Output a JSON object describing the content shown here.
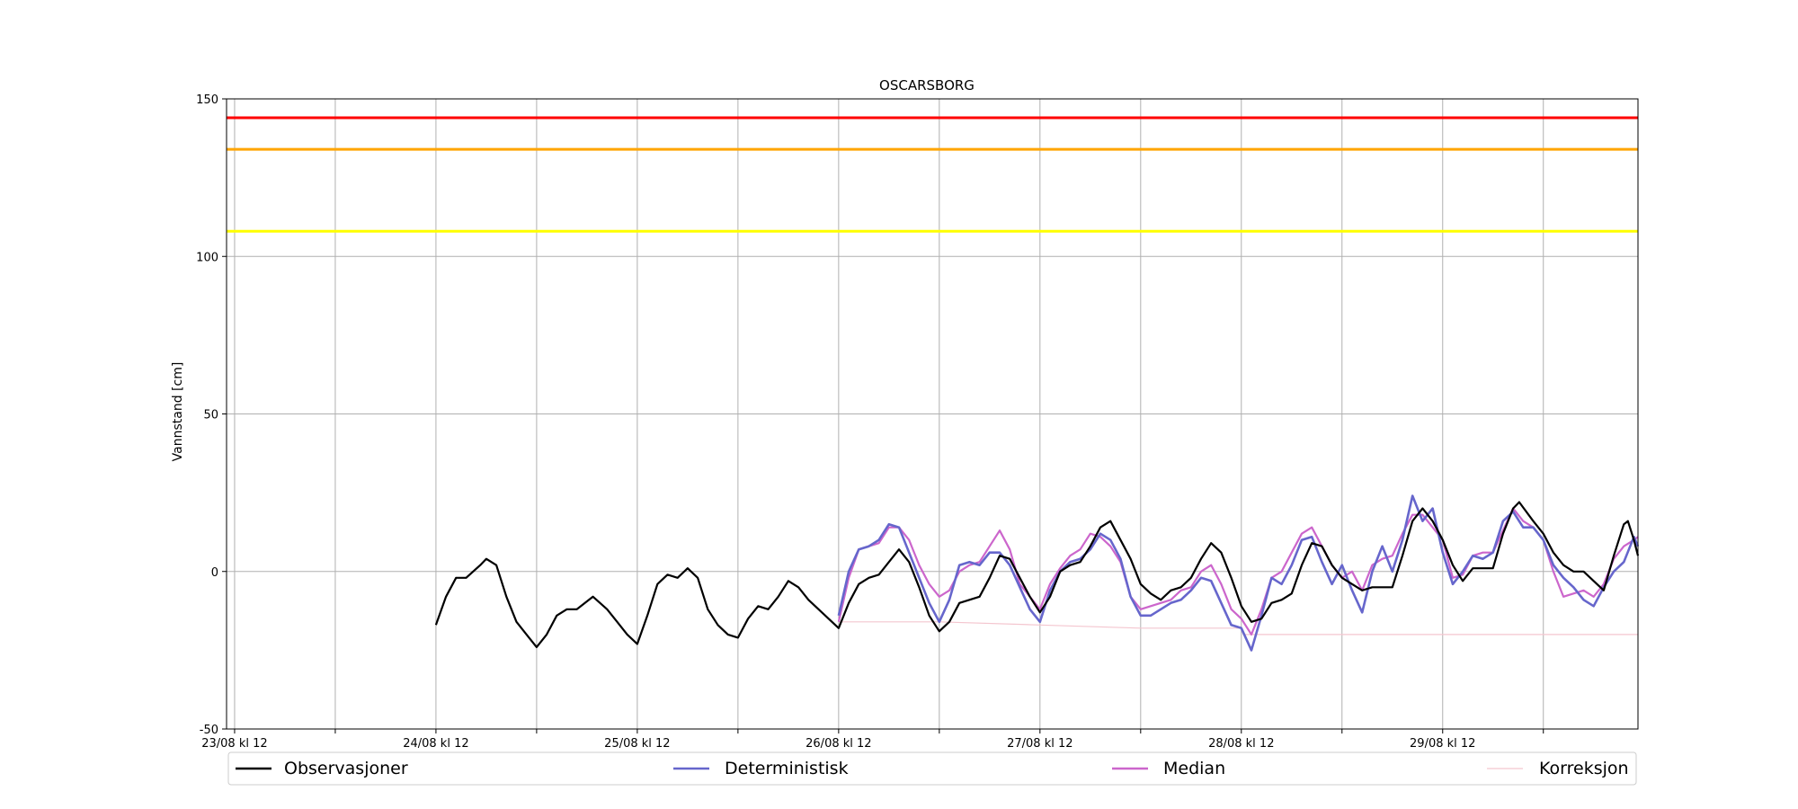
{
  "chart_data": {
    "type": "line",
    "title": "OSCARSBORG",
    "ylabel": "Vannstand [cm]",
    "xlabel": "",
    "ylim": [
      -50,
      150
    ],
    "xlim": [
      -0.04,
      6.97
    ],
    "x_unit": "days since 23/08 kl 12",
    "yticks": [
      -50,
      0,
      50,
      100,
      150
    ],
    "xticks": [
      {
        "x": 0,
        "label": "23/08 kl 12"
      },
      {
        "x": 0.5,
        "label": ""
      },
      {
        "x": 1,
        "label": "24/08 kl 12"
      },
      {
        "x": 1.5,
        "label": ""
      },
      {
        "x": 2,
        "label": "25/08 kl 12"
      },
      {
        "x": 2.5,
        "label": ""
      },
      {
        "x": 3,
        "label": "26/08 kl 12"
      },
      {
        "x": 3.5,
        "label": ""
      },
      {
        "x": 4,
        "label": "27/08 kl 12"
      },
      {
        "x": 4.5,
        "label": ""
      },
      {
        "x": 5,
        "label": "28/08 kl 12"
      },
      {
        "x": 5.5,
        "label": ""
      },
      {
        "x": 6,
        "label": "29/08 kl 12"
      },
      {
        "x": 6.5,
        "label": ""
      }
    ],
    "grid": true,
    "legend_placement": "bottom, below the axes, one row",
    "thresholds": [
      {
        "value": 144,
        "color": "#ff0000"
      },
      {
        "value": 134,
        "color": "#ffa500"
      },
      {
        "value": 108,
        "color": "#ffff00"
      }
    ],
    "series": [
      {
        "name": "Observasjoner",
        "color": "#000000",
        "points": [
          [
            1.0,
            -17
          ],
          [
            1.05,
            -8
          ],
          [
            1.1,
            -2
          ],
          [
            1.15,
            -2
          ],
          [
            1.22,
            2
          ],
          [
            1.25,
            4
          ],
          [
            1.3,
            2
          ],
          [
            1.35,
            -8
          ],
          [
            1.4,
            -16
          ],
          [
            1.45,
            -20
          ],
          [
            1.5,
            -24
          ],
          [
            1.55,
            -20
          ],
          [
            1.6,
            -14
          ],
          [
            1.65,
            -12
          ],
          [
            1.7,
            -12
          ],
          [
            1.78,
            -8
          ],
          [
            1.85,
            -12
          ],
          [
            1.9,
            -16
          ],
          [
            1.95,
            -20
          ],
          [
            2.0,
            -23
          ],
          [
            2.05,
            -14
          ],
          [
            2.1,
            -4
          ],
          [
            2.15,
            -1
          ],
          [
            2.2,
            -2
          ],
          [
            2.25,
            1
          ],
          [
            2.3,
            -2
          ],
          [
            2.35,
            -12
          ],
          [
            2.4,
            -17
          ],
          [
            2.45,
            -20
          ],
          [
            2.5,
            -21
          ],
          [
            2.55,
            -15
          ],
          [
            2.6,
            -11
          ],
          [
            2.65,
            -12
          ],
          [
            2.7,
            -8
          ],
          [
            2.75,
            -3
          ],
          [
            2.8,
            -5
          ],
          [
            2.85,
            -9
          ],
          [
            2.9,
            -12
          ],
          [
            2.95,
            -15
          ],
          [
            3.0,
            -18
          ],
          [
            3.05,
            -10
          ],
          [
            3.1,
            -4
          ],
          [
            3.15,
            -2
          ],
          [
            3.2,
            -1
          ],
          [
            3.25,
            3
          ],
          [
            3.3,
            7
          ],
          [
            3.35,
            3
          ],
          [
            3.4,
            -5
          ],
          [
            3.45,
            -14
          ],
          [
            3.5,
            -19
          ],
          [
            3.55,
            -16
          ],
          [
            3.6,
            -10
          ],
          [
            3.65,
            -9
          ],
          [
            3.7,
            -8
          ],
          [
            3.75,
            -2
          ],
          [
            3.8,
            5
          ],
          [
            3.85,
            4
          ],
          [
            3.9,
            -2
          ],
          [
            3.95,
            -8
          ],
          [
            4.0,
            -13
          ],
          [
            4.05,
            -8
          ],
          [
            4.1,
            0
          ],
          [
            4.15,
            2
          ],
          [
            4.2,
            3
          ],
          [
            4.25,
            8
          ],
          [
            4.3,
            14
          ],
          [
            4.35,
            16
          ],
          [
            4.4,
            10
          ],
          [
            4.45,
            4
          ],
          [
            4.5,
            -4
          ],
          [
            4.55,
            -7
          ],
          [
            4.6,
            -9
          ],
          [
            4.65,
            -6
          ],
          [
            4.7,
            -5
          ],
          [
            4.75,
            -2
          ],
          [
            4.8,
            4
          ],
          [
            4.85,
            9
          ],
          [
            4.9,
            6
          ],
          [
            4.95,
            -2
          ],
          [
            5.0,
            -11
          ],
          [
            5.05,
            -16
          ],
          [
            5.1,
            -15
          ],
          [
            5.15,
            -10
          ],
          [
            5.2,
            -9
          ],
          [
            5.25,
            -7
          ],
          [
            5.3,
            2
          ],
          [
            5.35,
            9
          ],
          [
            5.4,
            8
          ],
          [
            5.45,
            2
          ],
          [
            5.5,
            -2
          ],
          [
            5.55,
            -4
          ],
          [
            5.6,
            -6
          ],
          [
            5.65,
            -5
          ],
          [
            5.7,
            -5
          ],
          [
            5.75,
            -5
          ],
          [
            5.8,
            5
          ],
          [
            5.85,
            16
          ],
          [
            5.9,
            20
          ],
          [
            5.95,
            16
          ],
          [
            6.0,
            10
          ],
          [
            6.05,
            2
          ],
          [
            6.1,
            -3
          ],
          [
            6.15,
            1
          ],
          [
            6.2,
            1
          ],
          [
            6.25,
            1
          ],
          [
            6.3,
            12
          ],
          [
            6.35,
            20
          ],
          [
            6.38,
            22
          ],
          [
            6.45,
            16
          ],
          [
            6.5,
            12
          ],
          [
            6.55,
            6
          ],
          [
            6.6,
            2
          ],
          [
            6.65,
            0
          ],
          [
            6.7,
            0
          ],
          [
            6.75,
            -3
          ],
          [
            6.8,
            -6
          ],
          [
            6.85,
            5
          ],
          [
            6.9,
            15
          ],
          [
            6.92,
            16
          ],
          [
            6.95,
            10
          ],
          [
            6.97,
            5
          ]
        ]
      },
      {
        "name": "Deterministisk",
        "color": "#6666cc",
        "points": [
          [
            3.0,
            -14
          ],
          [
            3.05,
            0
          ],
          [
            3.1,
            7
          ],
          [
            3.15,
            8
          ],
          [
            3.2,
            10
          ],
          [
            3.25,
            15
          ],
          [
            3.3,
            14
          ],
          [
            3.35,
            6
          ],
          [
            3.4,
            -2
          ],
          [
            3.45,
            -10
          ],
          [
            3.5,
            -16
          ],
          [
            3.55,
            -9
          ],
          [
            3.6,
            2
          ],
          [
            3.65,
            3
          ],
          [
            3.7,
            2
          ],
          [
            3.75,
            6
          ],
          [
            3.8,
            6
          ],
          [
            3.85,
            2
          ],
          [
            3.9,
            -5
          ],
          [
            3.95,
            -12
          ],
          [
            4.0,
            -16
          ],
          [
            4.05,
            -6
          ],
          [
            4.1,
            0
          ],
          [
            4.15,
            3
          ],
          [
            4.2,
            4
          ],
          [
            4.25,
            7
          ],
          [
            4.3,
            12
          ],
          [
            4.35,
            10
          ],
          [
            4.4,
            4
          ],
          [
            4.45,
            -8
          ],
          [
            4.5,
            -14
          ],
          [
            4.55,
            -14
          ],
          [
            4.6,
            -12
          ],
          [
            4.65,
            -10
          ],
          [
            4.7,
            -9
          ],
          [
            4.75,
            -6
          ],
          [
            4.8,
            -2
          ],
          [
            4.85,
            -3
          ],
          [
            4.9,
            -10
          ],
          [
            4.95,
            -17
          ],
          [
            5.0,
            -18
          ],
          [
            5.05,
            -25
          ],
          [
            5.1,
            -14
          ],
          [
            5.15,
            -2
          ],
          [
            5.2,
            -4
          ],
          [
            5.25,
            2
          ],
          [
            5.3,
            10
          ],
          [
            5.35,
            11
          ],
          [
            5.4,
            3
          ],
          [
            5.45,
            -4
          ],
          [
            5.5,
            2
          ],
          [
            5.55,
            -6
          ],
          [
            5.6,
            -13
          ],
          [
            5.65,
            0
          ],
          [
            5.7,
            8
          ],
          [
            5.75,
            0
          ],
          [
            5.8,
            10
          ],
          [
            5.85,
            24
          ],
          [
            5.9,
            16
          ],
          [
            5.95,
            20
          ],
          [
            6.0,
            6
          ],
          [
            6.05,
            -4
          ],
          [
            6.1,
            0
          ],
          [
            6.15,
            5
          ],
          [
            6.2,
            4
          ],
          [
            6.25,
            6
          ],
          [
            6.3,
            16
          ],
          [
            6.35,
            19
          ],
          [
            6.4,
            14
          ],
          [
            6.45,
            14
          ],
          [
            6.5,
            10
          ],
          [
            6.55,
            2
          ],
          [
            6.6,
            -2
          ],
          [
            6.65,
            -5
          ],
          [
            6.7,
            -9
          ],
          [
            6.75,
            -11
          ],
          [
            6.8,
            -5
          ],
          [
            6.85,
            0
          ],
          [
            6.9,
            3
          ],
          [
            6.95,
            11
          ],
          [
            6.97,
            8
          ]
        ]
      },
      {
        "name": "Median",
        "color": "#cc66cc",
        "points": [
          [
            3.0,
            -16
          ],
          [
            3.05,
            -2
          ],
          [
            3.1,
            7
          ],
          [
            3.15,
            8
          ],
          [
            3.2,
            9
          ],
          [
            3.25,
            14
          ],
          [
            3.3,
            14
          ],
          [
            3.35,
            10
          ],
          [
            3.4,
            2
          ],
          [
            3.45,
            -4
          ],
          [
            3.5,
            -8
          ],
          [
            3.55,
            -6
          ],
          [
            3.6,
            0
          ],
          [
            3.65,
            2
          ],
          [
            3.7,
            3
          ],
          [
            3.75,
            8
          ],
          [
            3.8,
            13
          ],
          [
            3.85,
            7
          ],
          [
            3.9,
            -4
          ],
          [
            3.95,
            -8
          ],
          [
            4.0,
            -12
          ],
          [
            4.05,
            -4
          ],
          [
            4.1,
            1
          ],
          [
            4.15,
            5
          ],
          [
            4.2,
            7
          ],
          [
            4.25,
            12
          ],
          [
            4.3,
            11
          ],
          [
            4.35,
            8
          ],
          [
            4.4,
            3
          ],
          [
            4.45,
            -8
          ],
          [
            4.5,
            -12
          ],
          [
            4.55,
            -11
          ],
          [
            4.6,
            -10
          ],
          [
            4.65,
            -9
          ],
          [
            4.7,
            -6
          ],
          [
            4.75,
            -5
          ],
          [
            4.8,
            0
          ],
          [
            4.85,
            2
          ],
          [
            4.9,
            -4
          ],
          [
            4.95,
            -12
          ],
          [
            5.0,
            -15
          ],
          [
            5.05,
            -20
          ],
          [
            5.1,
            -12
          ],
          [
            5.15,
            -2
          ],
          [
            5.2,
            0
          ],
          [
            5.25,
            6
          ],
          [
            5.3,
            12
          ],
          [
            5.35,
            14
          ],
          [
            5.4,
            8
          ],
          [
            5.45,
            2
          ],
          [
            5.5,
            -2
          ],
          [
            5.55,
            0
          ],
          [
            5.6,
            -6
          ],
          [
            5.65,
            2
          ],
          [
            5.7,
            4
          ],
          [
            5.75,
            5
          ],
          [
            5.8,
            12
          ],
          [
            5.85,
            18
          ],
          [
            5.9,
            18
          ],
          [
            5.95,
            14
          ],
          [
            6.0,
            10
          ],
          [
            6.05,
            -2
          ],
          [
            6.1,
            -1
          ],
          [
            6.15,
            5
          ],
          [
            6.2,
            6
          ],
          [
            6.25,
            6
          ],
          [
            6.3,
            13
          ],
          [
            6.35,
            20
          ],
          [
            6.4,
            16
          ],
          [
            6.45,
            14
          ],
          [
            6.5,
            10
          ],
          [
            6.55,
            0
          ],
          [
            6.6,
            -8
          ],
          [
            6.65,
            -7
          ],
          [
            6.7,
            -6
          ],
          [
            6.75,
            -8
          ],
          [
            6.8,
            -4
          ],
          [
            6.85,
            4
          ],
          [
            6.9,
            8
          ],
          [
            6.95,
            10
          ],
          [
            6.97,
            11
          ]
        ]
      },
      {
        "name": "Korreksjon",
        "color": "#f4c6cf",
        "points": [
          [
            3.0,
            -16
          ],
          [
            3.5,
            -16
          ],
          [
            4.0,
            -17
          ],
          [
            4.5,
            -18
          ],
          [
            5.0,
            -18
          ],
          [
            5.01,
            -20
          ],
          [
            5.5,
            -20
          ],
          [
            6.0,
            -20
          ],
          [
            6.01,
            -20
          ],
          [
            6.5,
            -20
          ],
          [
            6.97,
            -20
          ]
        ]
      }
    ]
  }
}
